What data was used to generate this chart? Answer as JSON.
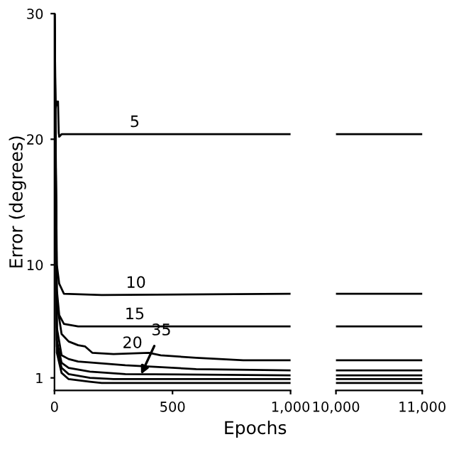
{
  "chart_data": [
    {
      "type": "line",
      "xlabel": "Epochs",
      "ylabel": "Error (degrees)",
      "xlim": [
        0,
        1000
      ],
      "xticks": [
        0,
        500,
        {
          "value": 1000,
          "label": "1,000"
        }
      ],
      "ylim": [
        0,
        30
      ],
      "yticks": [
        1,
        10,
        20,
        30
      ],
      "grid": false,
      "legend": false,
      "series": [
        {
          "color": "#000000",
          "x": [
            0,
            5,
            10,
            15,
            18,
            20,
            30,
            1000
          ],
          "values": [
            30,
            22.5,
            23,
            23,
            20.5,
            20.2,
            20.4,
            20.4
          ]
        },
        {
          "color": "#000000",
          "x": [
            0,
            10,
            20,
            40,
            200,
            1000
          ],
          "values": [
            30,
            10,
            8.5,
            7.7,
            7.6,
            7.7
          ]
        },
        {
          "color": "#000000",
          "x": [
            0,
            10,
            20,
            40,
            100,
            1000
          ],
          "values": [
            30,
            8,
            6,
            5.3,
            5.1,
            5.1
          ]
        },
        {
          "color": "#000000",
          "x": [
            0,
            10,
            30,
            60,
            100,
            130,
            160,
            250,
            400,
            450,
            600,
            800,
            1000
          ],
          "values": [
            30,
            7,
            4.5,
            3.9,
            3.6,
            3.5,
            3.0,
            2.9,
            3.0,
            2.8,
            2.6,
            2.4,
            2.4
          ]
        },
        {
          "color": "#000000",
          "x": [
            0,
            10,
            30,
            60,
            100,
            300,
            600,
            1000
          ],
          "values": [
            30,
            5,
            2.8,
            2.5,
            2.3,
            2.0,
            1.7,
            1.6
          ]
        },
        {
          "color": "#000000",
          "x": [
            0,
            10,
            30,
            60,
            150,
            300,
            1000
          ],
          "values": [
            30,
            4,
            2.2,
            1.8,
            1.5,
            1.3,
            1.2
          ]
        },
        {
          "color": "#000000",
          "x": [
            0,
            10,
            30,
            60,
            150,
            250,
            1000
          ],
          "values": [
            30,
            3.5,
            1.8,
            1.3,
            1.0,
            0.9,
            0.9
          ]
        },
        {
          "color": "#000000",
          "x": [
            0,
            10,
            30,
            60,
            150,
            200,
            1000
          ],
          "values": [
            30,
            3,
            1.4,
            0.9,
            0.7,
            0.6,
            0.6
          ]
        }
      ],
      "annotations": [
        {
          "text": "5",
          "x": 340,
          "y": 20.4
        },
        {
          "text": "10",
          "x": 345,
          "y": 7.6
        },
        {
          "text": "15",
          "x": 340,
          "y": 5.1
        },
        {
          "text": "20",
          "x": 330,
          "y": 2.8
        },
        {
          "text": "35",
          "x": 360,
          "y": 1.0
        }
      ]
    },
    {
      "type": "line",
      "xlim": [
        10000,
        11000
      ],
      "xticks": [
        {
          "value": 10000,
          "label": "10,000"
        },
        {
          "value": 11000,
          "label": "11,000"
        }
      ],
      "ylim": [
        0,
        30
      ],
      "tick_labels": "x",
      "grid": false,
      "legend": false,
      "series": [
        {
          "color": "#000000",
          "x": [
            10000,
            11000
          ],
          "values": [
            20.4,
            20.4
          ]
        },
        {
          "color": "#000000",
          "x": [
            10000,
            11000
          ],
          "values": [
            7.7,
            7.7
          ]
        },
        {
          "color": "#000000",
          "x": [
            10000,
            11000
          ],
          "values": [
            5.1,
            5.1
          ]
        },
        {
          "color": "#000000",
          "x": [
            10000,
            11000
          ],
          "values": [
            2.4,
            2.4
          ]
        },
        {
          "color": "#000000",
          "x": [
            10000,
            11000
          ],
          "values": [
            1.6,
            1.6
          ]
        },
        {
          "color": "#000000",
          "x": [
            10000,
            11000
          ],
          "values": [
            1.2,
            1.2
          ]
        },
        {
          "color": "#000000",
          "x": [
            10000,
            11000
          ],
          "values": [
            0.9,
            0.9
          ]
        },
        {
          "color": "#000000",
          "x": [
            10000,
            11000
          ],
          "values": [
            0.6,
            0.6
          ]
        }
      ]
    }
  ]
}
